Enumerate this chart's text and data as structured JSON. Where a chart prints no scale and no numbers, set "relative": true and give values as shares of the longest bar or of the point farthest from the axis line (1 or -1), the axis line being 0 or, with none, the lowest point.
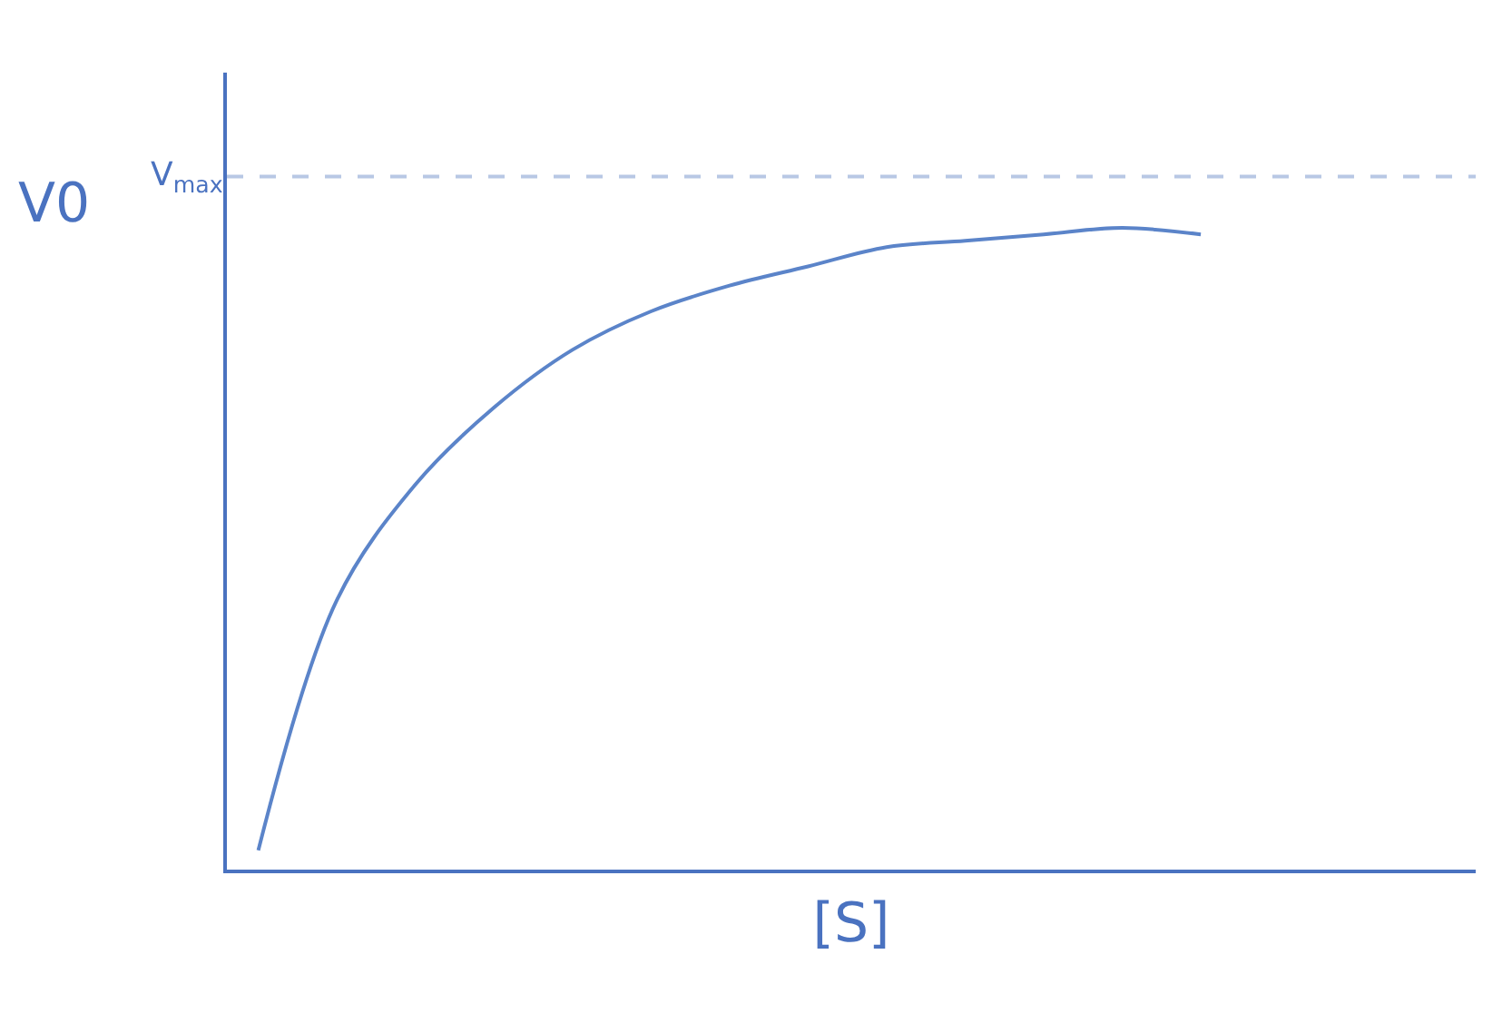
{
  "chart_data": {
    "type": "line",
    "relative": true,
    "xlabel": "[S]",
    "ylabel": "V0",
    "categories": [
      null,
      null,
      null,
      null,
      null,
      null,
      null,
      null,
      null,
      null,
      null,
      null,
      null
    ],
    "series": [
      {
        "color": "#5b84c9",
        "values": [
          0.03,
          0.42,
          0.6,
          0.72,
          0.81,
          0.87,
          0.91,
          0.94,
          0.97,
          0.98,
          0.99,
          1.0,
          0.99
        ]
      }
    ],
    "ref_lines": [
      {
        "axis": "y",
        "value": 1.08,
        "label": "V$_{max}$",
        "color": "#b8c8e4",
        "line_style": "dashed"
      }
    ],
    "marker": "none",
    "line_style": "solid"
  }
}
